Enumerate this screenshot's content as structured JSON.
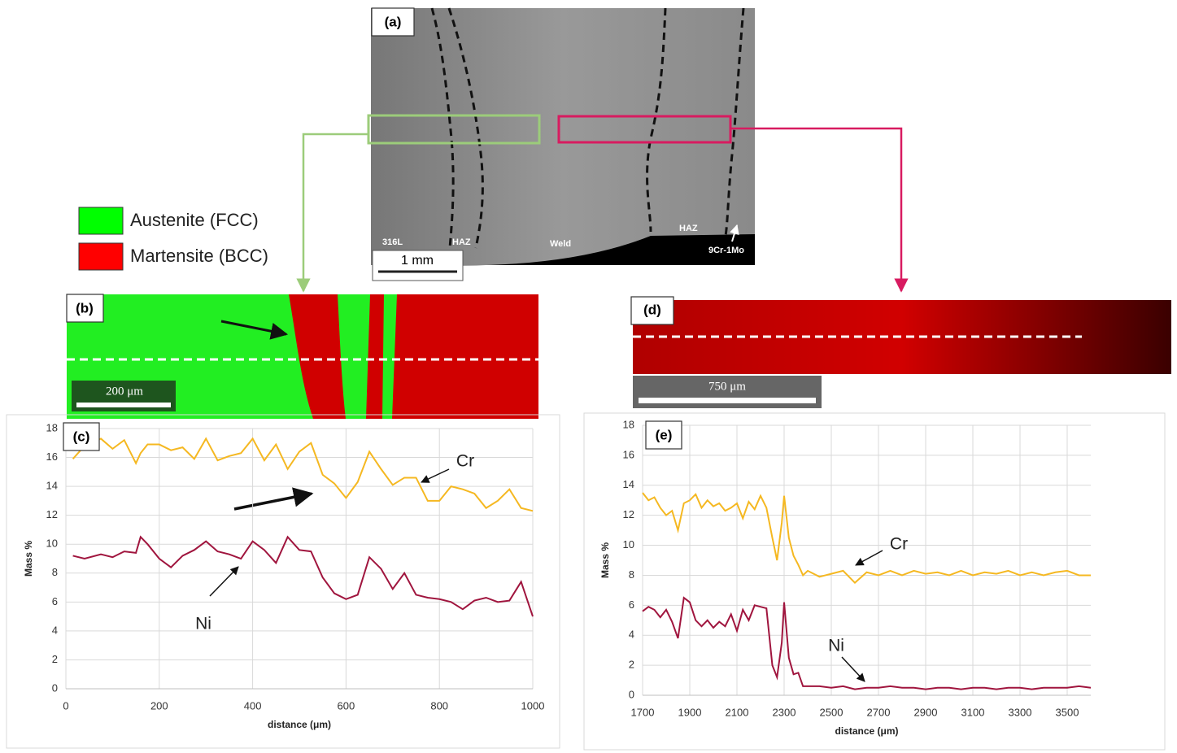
{
  "panel_a": {
    "label": "(a)",
    "regions": [
      "316L",
      "HAZ",
      "Weld",
      "HAZ",
      "9Cr-1Mo"
    ],
    "scale_bar": "1 mm"
  },
  "phase_legend": [
    "Austenite (FCC)",
    "Martensite (BCC)"
  ],
  "panel_b": {
    "label": "(b)",
    "scale_bar": "200 μm"
  },
  "panel_d": {
    "label": "(d)",
    "scale_bar": "750 μm"
  },
  "chart_data": [
    {
      "type": "line",
      "panel_label": "(c)",
      "x_label": "distance (μm)",
      "y_label": "Mass %",
      "grid": true,
      "x": [
        15,
        40,
        75,
        100,
        125,
        150,
        160,
        175,
        200,
        225,
        250,
        275,
        300,
        325,
        350,
        375,
        400,
        425,
        450,
        475,
        500,
        525,
        550,
        575,
        600,
        625,
        650,
        675,
        700,
        725,
        750,
        775,
        800,
        825,
        850,
        875,
        900,
        925,
        950,
        975,
        1000
      ],
      "series": [
        {
          "name": "Cr",
          "color": "#f5b821",
          "values": [
            15.9,
            16.8,
            17.3,
            16.6,
            17.2,
            15.6,
            16.3,
            16.9,
            16.9,
            16.5,
            16.7,
            15.9,
            17.3,
            15.8,
            16.1,
            16.3,
            17.3,
            15.8,
            16.9,
            15.2,
            16.4,
            17.0,
            14.8,
            14.2,
            13.2,
            14.3,
            16.4,
            15.2,
            14.1,
            14.6,
            14.6,
            13.0,
            13.0,
            14.0,
            13.8,
            13.5,
            12.5,
            13.0,
            13.8,
            12.5,
            12.3
          ]
        },
        {
          "name": "Ni",
          "color": "#a0153e",
          "values": [
            9.2,
            9.0,
            9.3,
            9.1,
            9.5,
            9.4,
            10.5,
            10.0,
            9.0,
            8.4,
            9.2,
            9.6,
            10.2,
            9.5,
            9.3,
            9.0,
            10.2,
            9.6,
            8.7,
            10.5,
            9.6,
            9.5,
            7.7,
            6.6,
            6.2,
            6.5,
            9.1,
            8.3,
            6.9,
            8.0,
            6.5,
            6.3,
            6.2,
            6.0,
            5.5,
            6.1,
            6.3,
            6.0,
            6.1,
            7.4,
            5.0
          ]
        }
      ],
      "xlim": [
        0,
        1000
      ],
      "xticks": [
        0,
        200,
        400,
        600,
        800,
        1000
      ],
      "ylim": [
        0,
        18
      ],
      "yticks": [
        0,
        2,
        4,
        6,
        8,
        10,
        12,
        14,
        16,
        18
      ]
    },
    {
      "type": "line",
      "panel_label": "(e)",
      "x_label": "distance (μm)",
      "y_label": "Mass %",
      "grid": true,
      "x": [
        1700,
        1725,
        1750,
        1775,
        1800,
        1825,
        1850,
        1875,
        1900,
        1925,
        1950,
        1975,
        2000,
        2025,
        2050,
        2075,
        2100,
        2125,
        2150,
        2175,
        2200,
        2225,
        2250,
        2270,
        2290,
        2300,
        2320,
        2340,
        2360,
        2380,
        2400,
        2450,
        2500,
        2550,
        2600,
        2650,
        2700,
        2750,
        2800,
        2850,
        2900,
        2950,
        3000,
        3050,
        3100,
        3150,
        3200,
        3250,
        3300,
        3350,
        3400,
        3450,
        3500,
        3550,
        3600
      ],
      "series": [
        {
          "name": "Cr",
          "color": "#f5b821",
          "values": [
            13.5,
            13.0,
            13.2,
            12.5,
            12.0,
            12.3,
            11.0,
            12.8,
            13.0,
            13.4,
            12.5,
            13.0,
            12.6,
            12.8,
            12.3,
            12.5,
            12.8,
            11.8,
            12.9,
            12.4,
            13.3,
            12.5,
            10.5,
            9.0,
            11.5,
            13.3,
            10.5,
            9.3,
            8.7,
            8.0,
            8.3,
            7.9,
            8.1,
            8.3,
            7.5,
            8.2,
            8.0,
            8.3,
            8.0,
            8.3,
            8.1,
            8.2,
            8.0,
            8.3,
            8.0,
            8.2,
            8.1,
            8.3,
            8.0,
            8.2,
            8.0,
            8.2,
            8.3,
            8.0,
            8.0
          ]
        },
        {
          "name": "Ni",
          "color": "#a0153e",
          "values": [
            5.6,
            5.9,
            5.7,
            5.2,
            5.7,
            4.9,
            3.8,
            6.5,
            6.2,
            5.0,
            4.6,
            5.0,
            4.5,
            4.9,
            4.6,
            5.4,
            4.3,
            5.7,
            5.0,
            6.0,
            5.9,
            5.8,
            2.0,
            1.2,
            3.5,
            6.2,
            2.5,
            1.4,
            1.5,
            0.6,
            0.6,
            0.6,
            0.5,
            0.6,
            0.4,
            0.5,
            0.5,
            0.6,
            0.5,
            0.5,
            0.4,
            0.5,
            0.5,
            0.4,
            0.5,
            0.5,
            0.4,
            0.5,
            0.5,
            0.4,
            0.5,
            0.5,
            0.5,
            0.6,
            0.5
          ]
        }
      ],
      "xlim": [
        1700,
        3600
      ],
      "xticks": [
        1700,
        1900,
        2100,
        2300,
        2500,
        2700,
        2900,
        3100,
        3300,
        3500
      ],
      "ylim": [
        0,
        18
      ],
      "yticks": [
        0,
        2,
        4,
        6,
        8,
        10,
        12,
        14,
        16,
        18
      ]
    }
  ]
}
